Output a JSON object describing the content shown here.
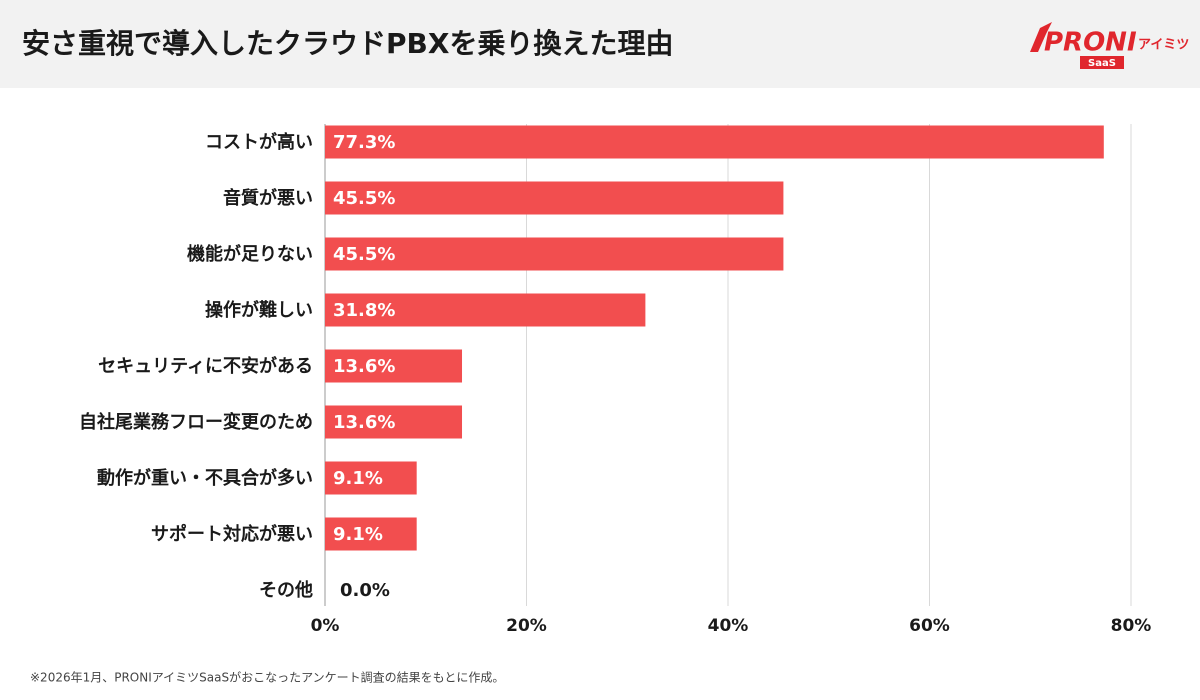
{
  "chart_data": {
    "type": "hbar",
    "title": "安さ重視で導入したクラウドPBXを乗り換えた理由",
    "categories": [
      "コストが高い",
      "音質が悪い",
      "機能が足りない",
      "操作が難しい",
      "セキュリティに不安がある",
      "自社尾業務フロー変更のため",
      "動作が重い・不具合が多い",
      "サポート対応が悪い",
      "その他"
    ],
    "values": [
      77.3,
      45.5,
      45.5,
      31.8,
      13.6,
      13.6,
      9.1,
      9.1,
      0.0
    ],
    "value_labels": [
      "77.3%",
      "45.5%",
      "45.5%",
      "31.8%",
      "13.6%",
      "13.6%",
      "9.1%",
      "9.1%",
      "0.0%"
    ],
    "color": "#f24e4f",
    "xlim": [
      0,
      80
    ],
    "xticks": [
      {
        "value": 0,
        "label": "0%"
      },
      {
        "value": 20,
        "label": "20%"
      },
      {
        "value": 40,
        "label": "40%"
      },
      {
        "value": 60,
        "label": "60%"
      },
      {
        "value": 80,
        "label": "80%"
      }
    ],
    "grid": true,
    "note": "※2026年1月、PRONIアイミツSaaSがおこなったアンケート調査の結果をもとに作成。"
  },
  "logo": {
    "brand": "PRONI",
    "sub": "アイミツ",
    "tag": "SaaS"
  }
}
